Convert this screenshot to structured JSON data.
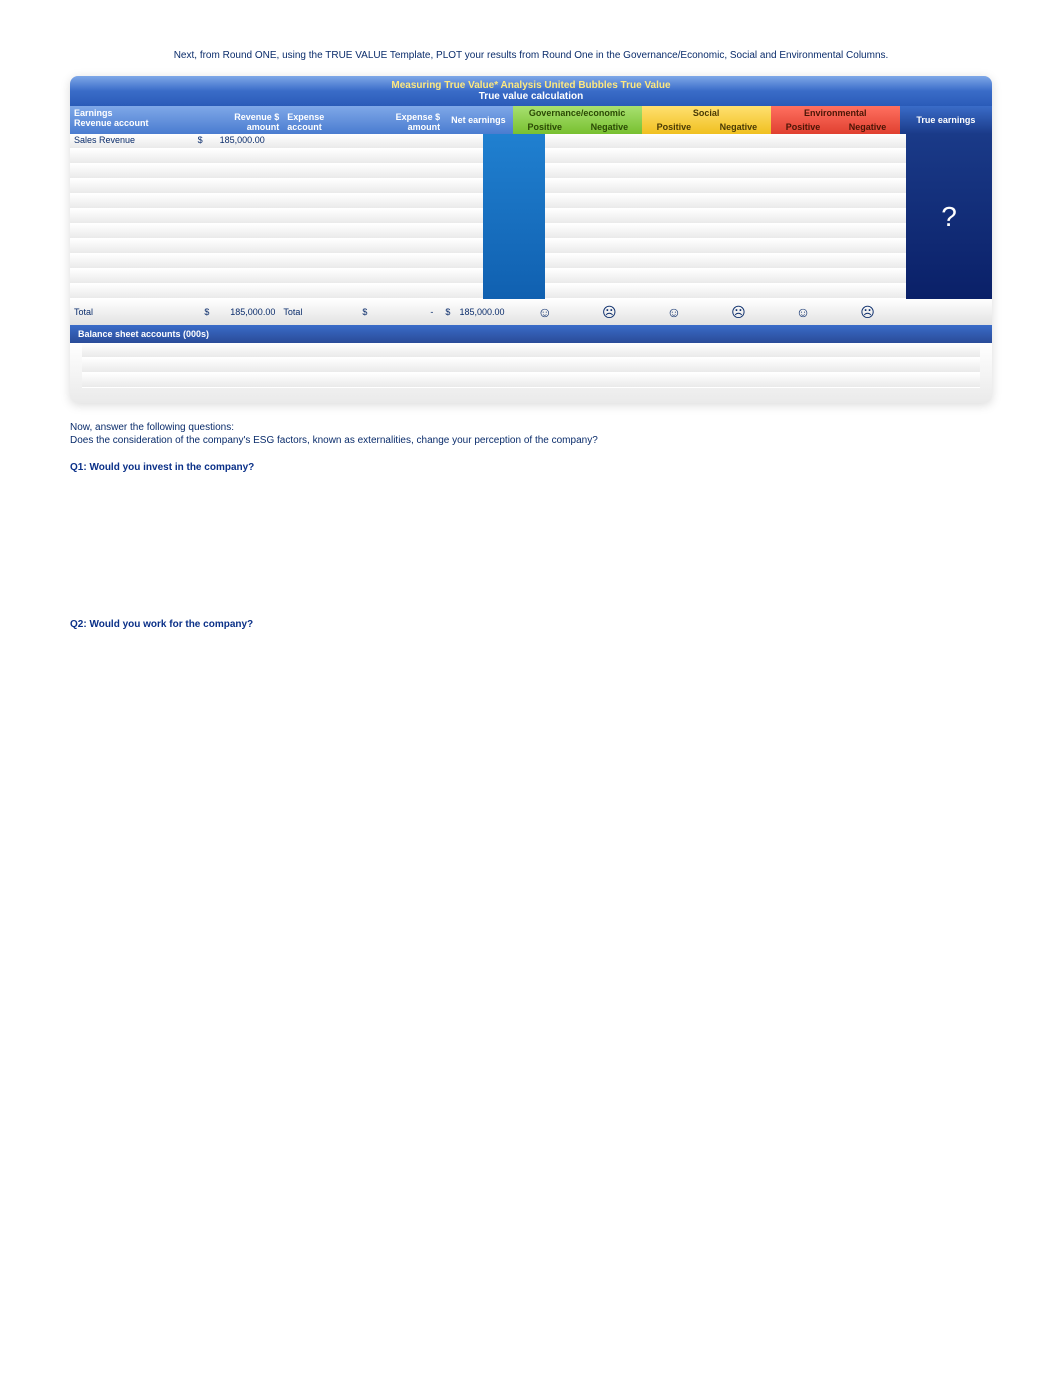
{
  "intro": "Next, from Round ONE, using the TRUE VALUE Template, PLOT your results from Round One in the Governance/Economic, Social and Environmental Columns.",
  "title_line1": "Measuring True Value* Analysis United Bubbles True Value",
  "title_line2": "True value calculation",
  "headers": {
    "earnings": "Earnings",
    "revenue_account": "Revenue account",
    "revenue_amount": "Revenue $ amount",
    "expense_account": "Expense account",
    "expense_amount": "Expense $ amount",
    "net_earnings": "Net earnings",
    "governance": "Governance/economic",
    "social": "Social",
    "environmental": "Environmental",
    "positive": "Positive",
    "negative": "Negative",
    "true_earnings": "True earnings"
  },
  "row_sales": {
    "label": "Sales Revenue",
    "currency": "$",
    "amount": "185,000.00"
  },
  "totals": {
    "label": "Total",
    "rev_currency": "$",
    "rev_amount": "185,000.00",
    "exp_label": "Total",
    "exp_currency": "$",
    "exp_amount": "-",
    "net_currency": "$",
    "net_amount": "185,000.00"
  },
  "emoji": {
    "happy": "☺",
    "sad": "☹"
  },
  "true_value_placeholder": "?",
  "balance_header": "Balance sheet accounts  (000s)",
  "questions": {
    "intro1": "Now, answer the following questions:",
    "intro2": "Does the consideration of the company's ESG factors, known as externalities, change your perception of the company?",
    "q1": "Q1: Would you invest in the company?",
    "q2": "Q2: Would you work for the company?"
  },
  "colors": {
    "blue_header_top": "#7fa8e8",
    "blue_header_bottom": "#2a5bb8",
    "title_gold": "#ffe97f",
    "green_top": "#a8e070",
    "green_bottom": "#78c030",
    "yellow_top": "#ffe070",
    "yellow_bottom": "#f0c020",
    "red_top": "#ff7060",
    "red_bottom": "#e04030",
    "net_bar_top": "#2080d0",
    "net_bar_bottom": "#1060b0",
    "true_bg_top": "#1a3a88",
    "true_bg_bottom": "#0a2068",
    "text_navy": "#0a2c6b"
  },
  "blank_rows": 10,
  "balance_blank_rows": 3
}
